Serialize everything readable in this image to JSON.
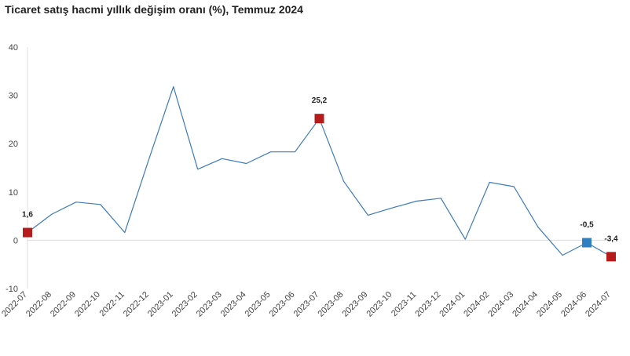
{
  "chart_data": {
    "type": "line",
    "title": "Ticaret satış hacmi yıllık değişim oranı (%), Temmuz 2024",
    "xlabel": "",
    "ylabel": "",
    "ylim": [
      -10,
      40
    ],
    "yticks": [
      -10,
      0,
      10,
      20,
      30,
      40
    ],
    "grid": false,
    "categories": [
      "2022-07",
      "2022-08",
      "2022-09",
      "2022-10",
      "2022-11",
      "2022-12",
      "2023-01",
      "2023-02",
      "2023-03",
      "2023-04",
      "2023-05",
      "2023-06",
      "2023-07",
      "2023-08",
      "2023-09",
      "2023-10",
      "2023-11",
      "2023-12",
      "2024-01",
      "2024-02",
      "2024-03",
      "2024-04",
      "2024-05",
      "2024-06",
      "2024-07"
    ],
    "series": [
      {
        "values": [
          1.6,
          5.4,
          7.9,
          7.4,
          1.6,
          16.9,
          31.8,
          14.7,
          16.9,
          15.9,
          18.3,
          18.3,
          25.2,
          12.2,
          5.2,
          6.7,
          8.1,
          8.7,
          0.2,
          12.0,
          11.1,
          2.7,
          -3.1,
          -0.5,
          -3.4
        ],
        "color": "#3b7bbd"
      }
    ],
    "highlights": [
      {
        "index": 0,
        "label": "1,6",
        "color": "#b71c1c"
      },
      {
        "index": 12,
        "label": "25,2",
        "color": "#b71c1c"
      },
      {
        "index": 23,
        "label": "-0,5",
        "color": "#2f7fc1"
      },
      {
        "index": 24,
        "label": "-3,4",
        "color": "#b71c1c"
      }
    ]
  }
}
